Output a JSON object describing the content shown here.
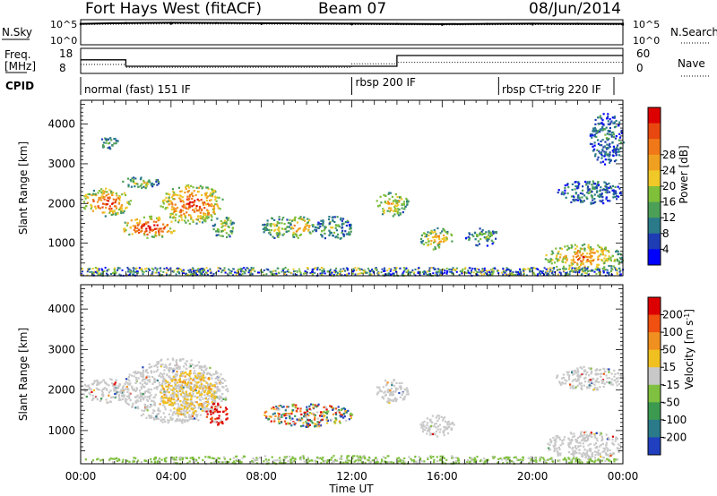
{
  "header": {
    "station": "Fort Hays West (fitACF)",
    "beam": "Beam 07",
    "date": "08/Jun/2014"
  },
  "top_panels": {
    "nsky_label": "N.Sky",
    "nsky_ticks": [
      "10^5",
      "10^0"
    ],
    "nsearch_label": "N.Search",
    "nsearch_ticks": [
      "10^5",
      "10^0"
    ],
    "freq_label": "Freq.",
    "freq_unit": "[MHz]",
    "freq_ticks": [
      "18",
      "8"
    ],
    "nave_label": "Nave",
    "nave_ticks": [
      "60",
      "0"
    ],
    "cpid_label": "CPID"
  },
  "cpid_segments": [
    {
      "label": "normal (fast) 151 IF",
      "start_hour": 0,
      "end_hour": 12
    },
    {
      "label": "rbsp 200 IF",
      "start_hour": 12,
      "end_hour": 18.5
    },
    {
      "label": "rbsp CT-trig 220 IF",
      "start_hour": 18.5,
      "end_hour": 24
    }
  ],
  "chart_data": [
    {
      "type": "line",
      "panel": "noise",
      "x_unit": "hours UT",
      "series": [
        {
          "name": "N.Sky",
          "x": [
            0,
            2,
            4,
            6,
            8,
            10,
            12,
            14,
            16,
            18,
            20,
            22,
            24
          ],
          "values": [
            20000,
            30000,
            35000,
            32000,
            28000,
            25000,
            22000,
            20000,
            18000,
            20000,
            22000,
            21000,
            20000
          ]
        },
        {
          "name": "N.Search",
          "x": [
            0,
            4,
            8,
            12,
            16,
            20,
            24
          ],
          "values": [
            15000,
            20000,
            18000,
            15000,
            12000,
            14000,
            13000
          ]
        }
      ],
      "ylim": [
        1,
        100000
      ]
    },
    {
      "type": "line",
      "panel": "frequency",
      "series": [
        {
          "name": "Freq.",
          "x": [
            0,
            2,
            2,
            14,
            14,
            24
          ],
          "values": [
            13.5,
            13.5,
            10.5,
            10.5,
            15.5,
            15.5
          ],
          "ylim": [
            8,
            18
          ]
        },
        {
          "name": "Nave",
          "x": [
            0,
            2,
            2,
            12,
            12,
            14,
            14,
            24
          ],
          "values": [
            20,
            20,
            12,
            12,
            22,
            22,
            26,
            26
          ],
          "ylim": [
            0,
            60
          ]
        }
      ]
    },
    {
      "type": "heatmap",
      "panel": "power",
      "xlabel": "",
      "ylabel": "Slant Range [km]",
      "xlim": [
        0,
        24
      ],
      "ylim": [
        180,
        4600
      ],
      "y_ticks": [
        1000,
        2000,
        3000,
        4000
      ],
      "colorbar": {
        "label": "Power [dB]",
        "ticks": [
          "4",
          "8",
          "12",
          "16",
          "20",
          "24",
          "28"
        ],
        "colors": [
          "#0000ff",
          "#1e3cb4",
          "#2a7a8a",
          "#4c9f57",
          "#7fbf3a",
          "#f0c828",
          "#f0a020",
          "#f07818",
          "#e84810",
          "#dd0000"
        ]
      },
      "blobs": [
        {
          "x": [
            0,
            2.2
          ],
          "r": [
            1700,
            2400
          ],
          "level": 7
        },
        {
          "x": [
            1.8,
            4.2
          ],
          "r": [
            1150,
            1700
          ],
          "level": 8
        },
        {
          "x": [
            3.5,
            6.3
          ],
          "r": [
            1500,
            2500
          ],
          "level": 7
        },
        {
          "x": [
            1.8,
            3.5
          ],
          "r": [
            2400,
            2700
          ],
          "level": 4
        },
        {
          "x": [
            0.8,
            1.8
          ],
          "r": [
            3400,
            3700
          ],
          "level": 3
        },
        {
          "x": [
            5.8,
            6.8
          ],
          "r": [
            1150,
            1700
          ],
          "level": 4
        },
        {
          "x": [
            8,
            9.3
          ],
          "r": [
            1150,
            1700
          ],
          "level": 4
        },
        {
          "x": [
            9,
            10.3
          ],
          "r": [
            1150,
            1700
          ],
          "level": 6
        },
        {
          "x": [
            10.3,
            12
          ],
          "r": [
            1100,
            1700
          ],
          "level": 3
        },
        {
          "x": [
            13,
            14.5
          ],
          "r": [
            1700,
            2300
          ],
          "level": 5
        },
        {
          "x": [
            15,
            16.5
          ],
          "r": [
            850,
            1400
          ],
          "level": 5
        },
        {
          "x": [
            17,
            18.5
          ],
          "r": [
            950,
            1400
          ],
          "level": 3
        },
        {
          "x": [
            20.5,
            24
          ],
          "r": [
            300,
            1000
          ],
          "level": 6
        },
        {
          "x": [
            21,
            24
          ],
          "r": [
            2000,
            2600
          ],
          "level": 2
        },
        {
          "x": [
            22.5,
            24
          ],
          "r": [
            3000,
            4300
          ],
          "level": 2
        }
      ]
    },
    {
      "type": "heatmap",
      "panel": "velocity",
      "xlabel": "Time UT",
      "ylabel": "Slant Range [km]",
      "x_ticks": [
        "00:00",
        "04:00",
        "08:00",
        "12:00",
        "16:00",
        "20:00",
        "00:00"
      ],
      "xlim": [
        0,
        24
      ],
      "ylim": [
        180,
        4600
      ],
      "y_ticks": [
        1000,
        2000,
        3000,
        4000
      ],
      "colorbar": {
        "label": "Velocity [m s^-1]",
        "ticks": [
          "200",
          "100",
          "50",
          "15",
          "-15",
          "-50",
          "-100",
          "-200"
        ],
        "colors": [
          "#2040c0",
          "#2a7a8a",
          "#3c9a50",
          "#80c040",
          "#c8c8c8",
          "#f0c020",
          "#f09020",
          "#f05010",
          "#dd0000"
        ]
      },
      "blobs": [
        {
          "x": [
            0,
            2.2
          ],
          "r": [
            1700,
            2300
          ],
          "class": "ground"
        },
        {
          "x": [
            1.8,
            6.5
          ],
          "r": [
            1200,
            2800
          ],
          "class": "ground"
        },
        {
          "x": [
            3.5,
            6
          ],
          "r": [
            1400,
            2500
          ],
          "class": "neg"
        },
        {
          "x": [
            5.5,
            6.5
          ],
          "r": [
            1150,
            1700
          ],
          "class": "strongneg"
        },
        {
          "x": [
            8,
            12
          ],
          "r": [
            1100,
            1700
          ],
          "class": "mixed"
        },
        {
          "x": [
            13,
            14.5
          ],
          "r": [
            1700,
            2300
          ],
          "class": "ground"
        },
        {
          "x": [
            15,
            16.5
          ],
          "r": [
            850,
            1400
          ],
          "class": "ground"
        },
        {
          "x": [
            20.5,
            24
          ],
          "r": [
            300,
            1000
          ],
          "class": "ground"
        },
        {
          "x": [
            21,
            24
          ],
          "r": [
            2000,
            2600
          ],
          "class": "ground"
        },
        {
          "x": [
            0,
            24
          ],
          "r": [
            180,
            400
          ],
          "class": "near"
        }
      ]
    }
  ]
}
